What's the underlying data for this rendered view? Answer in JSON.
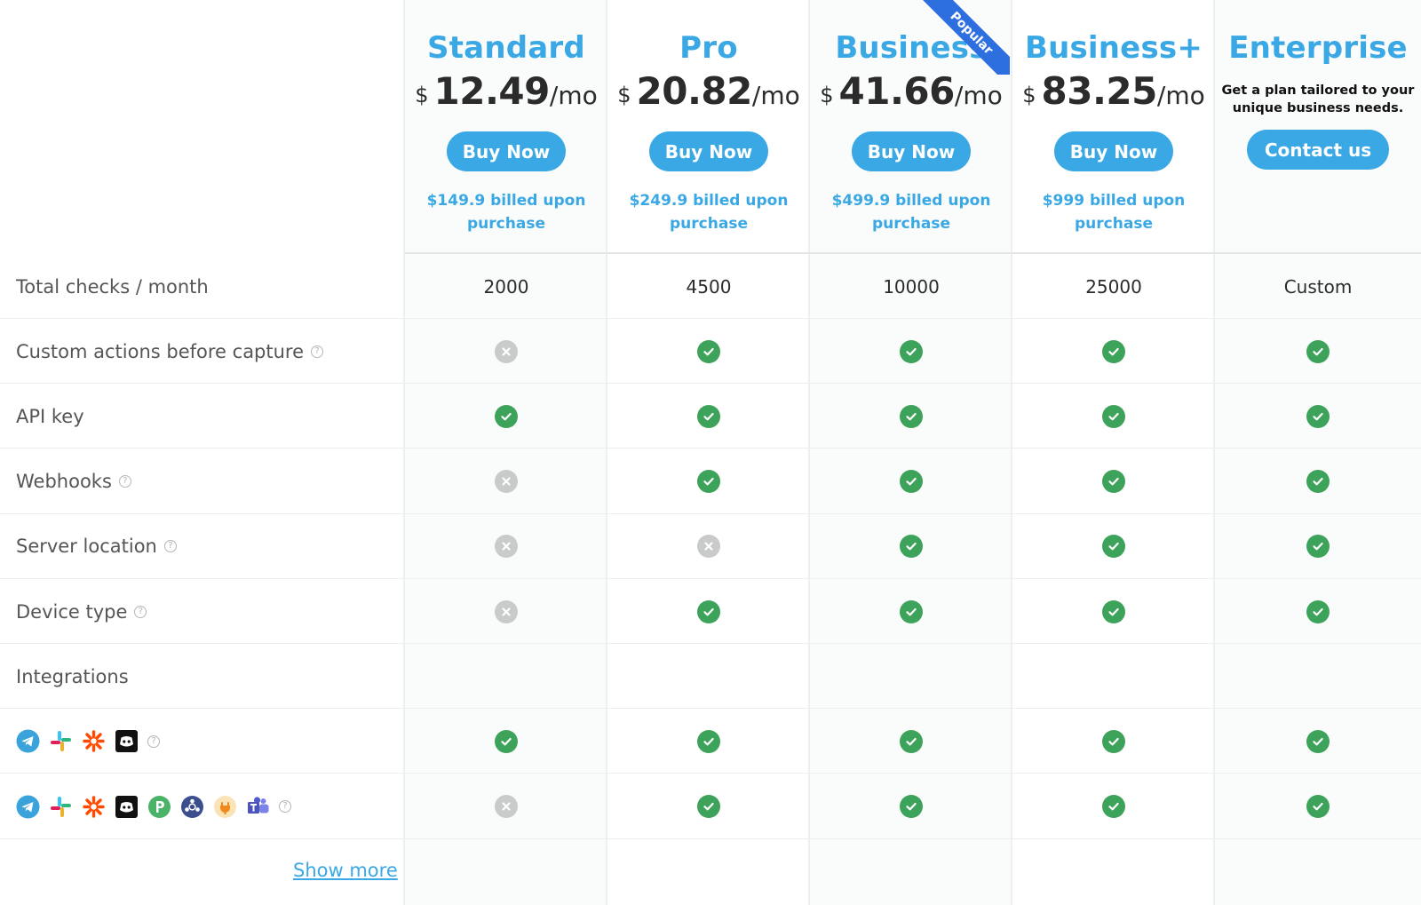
{
  "badge": "Popular",
  "plans": [
    {
      "name": "Standard",
      "currency": "$",
      "amount": "12.49",
      "period": "/mo",
      "button": "Buy Now",
      "billed": "$149.9 billed upon purchase"
    },
    {
      "name": "Pro",
      "currency": "$",
      "amount": "20.82",
      "period": "/mo",
      "button": "Buy Now",
      "billed": "$249.9 billed upon purchase"
    },
    {
      "name": "Business",
      "currency": "$",
      "amount": "41.66",
      "period": "/mo",
      "button": "Buy Now",
      "billed": "$499.9 billed upon purchase"
    },
    {
      "name": "Business+",
      "currency": "$",
      "amount": "83.25",
      "period": "/mo",
      "button": "Buy Now",
      "billed": "$999 billed upon purchase"
    },
    {
      "name": "Enterprise",
      "tagline": "Get a plan tailored to your unique business needs.",
      "button": "Contact us"
    }
  ],
  "rows": [
    {
      "label": "Total checks / month",
      "values": [
        "2000",
        "4500",
        "10000",
        "25000",
        "Custom"
      ]
    },
    {
      "label": "Custom actions before capture",
      "help": true,
      "checks": [
        false,
        true,
        true,
        true,
        true
      ]
    },
    {
      "label": "API key",
      "checks": [
        true,
        true,
        true,
        true,
        true
      ]
    },
    {
      "label": "Webhooks",
      "help": true,
      "checks": [
        false,
        true,
        true,
        true,
        true
      ]
    },
    {
      "label": "Server location",
      "help": true,
      "checks": [
        false,
        false,
        true,
        true,
        true
      ]
    },
    {
      "label": "Device type",
      "help": true,
      "checks": [
        false,
        true,
        true,
        true,
        true
      ]
    },
    {
      "label": "Integrations",
      "section": true
    },
    {
      "icons": [
        "telegram-icon",
        "slack-icon",
        "zapier-icon",
        "discord-icon"
      ],
      "help": true,
      "checks": [
        true,
        true,
        true,
        true,
        true
      ]
    },
    {
      "icons": [
        "telegram-icon",
        "slack-icon",
        "zapier-icon",
        "discord-icon",
        "pushbullet-icon",
        "chat-webhook-icon",
        "plug-icon",
        "teams-icon"
      ],
      "help": true,
      "checks": [
        false,
        true,
        true,
        true,
        true
      ]
    }
  ],
  "show_more": "Show more",
  "colors": {
    "accent": "#3aa8e4",
    "check": "#3ea35a",
    "cross": "#c9cbcb",
    "ribbon": "#2e6fe0"
  }
}
